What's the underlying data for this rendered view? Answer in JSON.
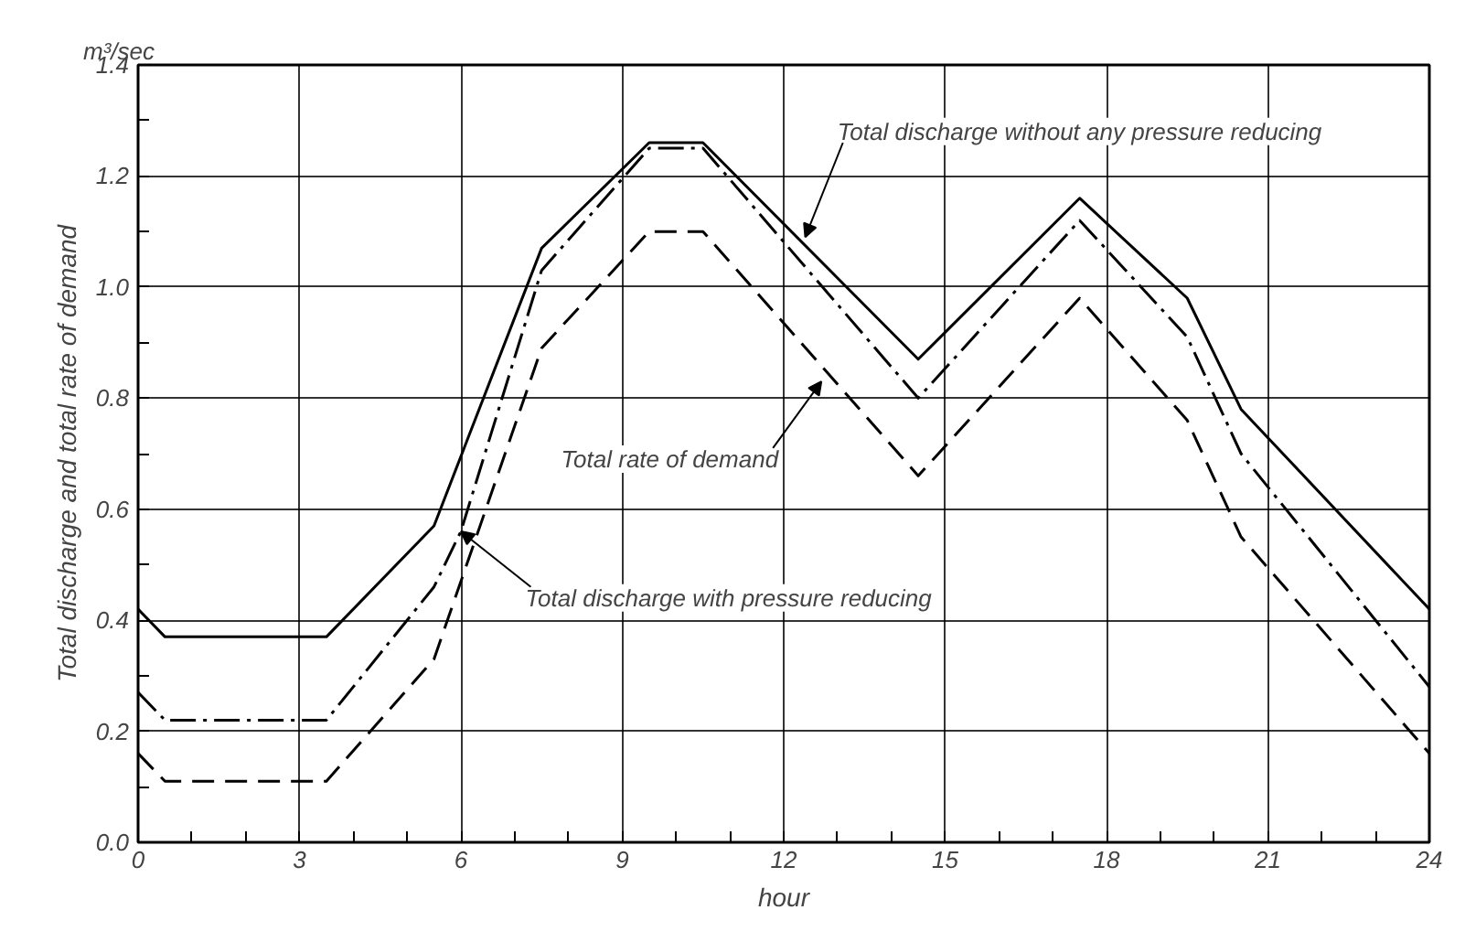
{
  "chart_data": {
    "type": "line",
    "xlabel": "hour",
    "ylabel": "Total discharge and total rate of demand",
    "xlim": [
      0,
      24
    ],
    "ylim": [
      0,
      1.4
    ],
    "xticks": [
      0,
      3,
      6,
      9,
      12,
      15,
      18,
      21,
      24
    ],
    "yticks": [
      {
        "value": 0,
        "label": "0.0"
      },
      0.2,
      0.4,
      0.6,
      0.8,
      {
        "value": 1.0,
        "label": "1.0"
      },
      1.2,
      1.4
    ],
    "grid": true,
    "series": [
      {
        "color": "#000000",
        "line_style": "solid",
        "x": [
          0,
          0.5,
          3.5,
          5.5,
          7.5,
          9.5,
          10.5,
          14.5,
          17.5,
          19.5,
          20.5,
          24
        ],
        "values": [
          0.42,
          0.37,
          0.37,
          0.57,
          1.07,
          1.26,
          1.26,
          0.87,
          1.16,
          0.98,
          0.78,
          0.42
        ]
      },
      {
        "color": "#000000",
        "line_style": "dashdot",
        "x": [
          0,
          0.5,
          3.5,
          5.5,
          6,
          7.5,
          9.5,
          10.5,
          14.5,
          17.5,
          19.5,
          20.5,
          24
        ],
        "values": [
          0.27,
          0.22,
          0.22,
          0.46,
          0.56,
          1.03,
          1.25,
          1.25,
          0.8,
          1.12,
          0.91,
          0.7,
          0.28
        ]
      },
      {
        "color": "#000000",
        "line_style": "dashed",
        "x": [
          0,
          0.5,
          3.5,
          5.5,
          7.5,
          9.5,
          10.5,
          14.5,
          17.5,
          19.5,
          20.5,
          24
        ],
        "values": [
          0.16,
          0.11,
          0.11,
          0.33,
          0.89,
          1.1,
          1.1,
          0.66,
          0.98,
          0.76,
          0.55,
          0.16
        ]
      }
    ],
    "annotations": [
      "m³/sec",
      {
        "text": "Total discharge without any pressure reducing",
        "x": 12.4,
        "y": 1.09
      },
      {
        "text": "Total rate of demand",
        "x": 12.7,
        "y": 0.83
      },
      {
        "text": "Total discharge with pressure reducing",
        "x": 6.0,
        "y": 0.56
      }
    ]
  }
}
